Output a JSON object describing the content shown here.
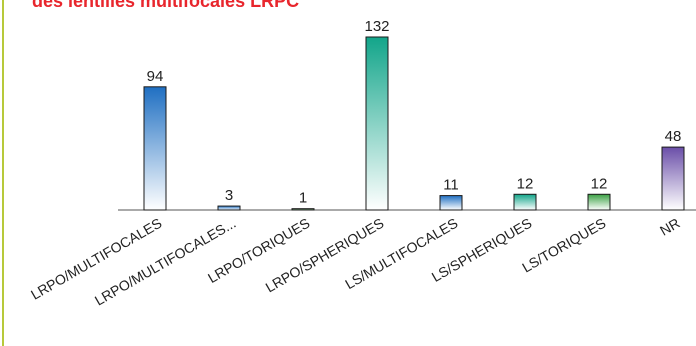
{
  "chart_data": {
    "type": "bar",
    "title": "des lentilles multifocales LRPC",
    "categories": [
      "LRPO/MULTIFOCALES",
      "LRPO/MULTIFOCALES...",
      "LRPO/TORIQUES",
      "LRPO/SPHERIQUES",
      "LS/MULTIFOCALES",
      "LS/SPHERIQUES",
      "LS/TORIQUES",
      "NR"
    ],
    "values": [
      94,
      3,
      1,
      132,
      11,
      12,
      12,
      48
    ],
    "colors": [
      "#1f6fc2",
      "#1f6fc2",
      "#3aa043",
      "#12a58a",
      "#1f6fc2",
      "#12a58a",
      "#3aa043",
      "#6a4ea8"
    ],
    "ylim": [
      0,
      132
    ],
    "grid": false,
    "legend": "none"
  }
}
